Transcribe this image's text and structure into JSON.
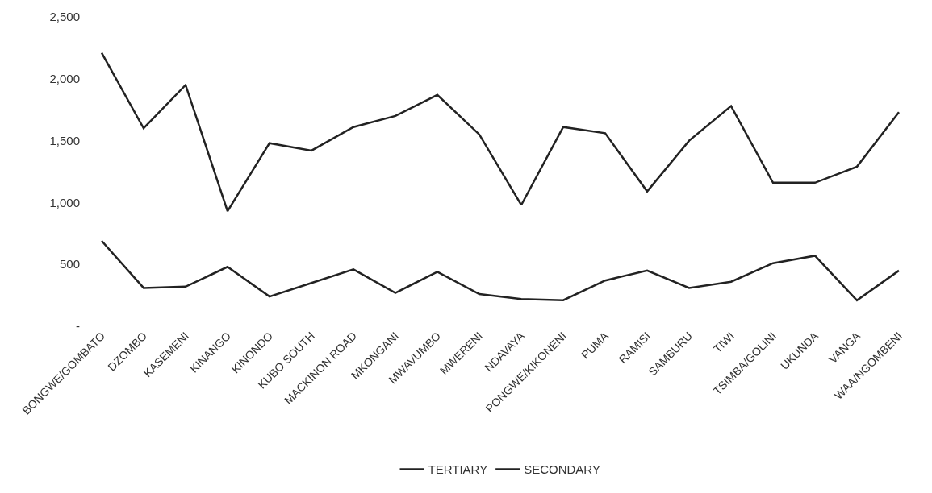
{
  "chart_data": {
    "type": "line",
    "categories": [
      "BONGWE/GOMBATO",
      "DZOMBO",
      "KASEMENI",
      "KINANGO",
      "KINONDO",
      "KUBO SOUTH",
      "MACKINON ROAD",
      "MKONGANI",
      "MWAVUMBO",
      "MWERENI",
      "NDAVAYA",
      "PONGWE/KIKONENI",
      "PUMA",
      "RAMISI",
      "SAMBURU",
      "TIWI",
      "TSIMBA/GOLINI",
      "UKUNDA",
      "VANGA",
      "WAA/NGOMBENI"
    ],
    "series": [
      {
        "name": "TERTIARY",
        "color": "#222222",
        "values": [
          690,
          310,
          320,
          480,
          240,
          350,
          460,
          270,
          440,
          260,
          220,
          210,
          370,
          450,
          310,
          360,
          510,
          570,
          210,
          450
        ]
      },
      {
        "name": "SECONDARY",
        "color": "#222222",
        "values": [
          2210,
          1600,
          1950,
          930,
          1480,
          1420,
          1610,
          1700,
          1870,
          1550,
          980,
          1610,
          1560,
          1090,
          1500,
          1780,
          1160,
          1160,
          1290,
          1730
        ]
      }
    ],
    "ylim": [
      0,
      2500
    ],
    "yticks": [
      {
        "value": 0,
        "label": "-"
      },
      {
        "value": 500,
        "label": "500"
      },
      {
        "value": 1000,
        "label": "1,000"
      },
      {
        "value": 1500,
        "label": "1,500"
      },
      {
        "value": 2000,
        "label": "2,000"
      },
      {
        "value": 2500,
        "label": "2,500"
      }
    ],
    "legend": "bottom",
    "marker": "none",
    "line_style": "solid"
  }
}
